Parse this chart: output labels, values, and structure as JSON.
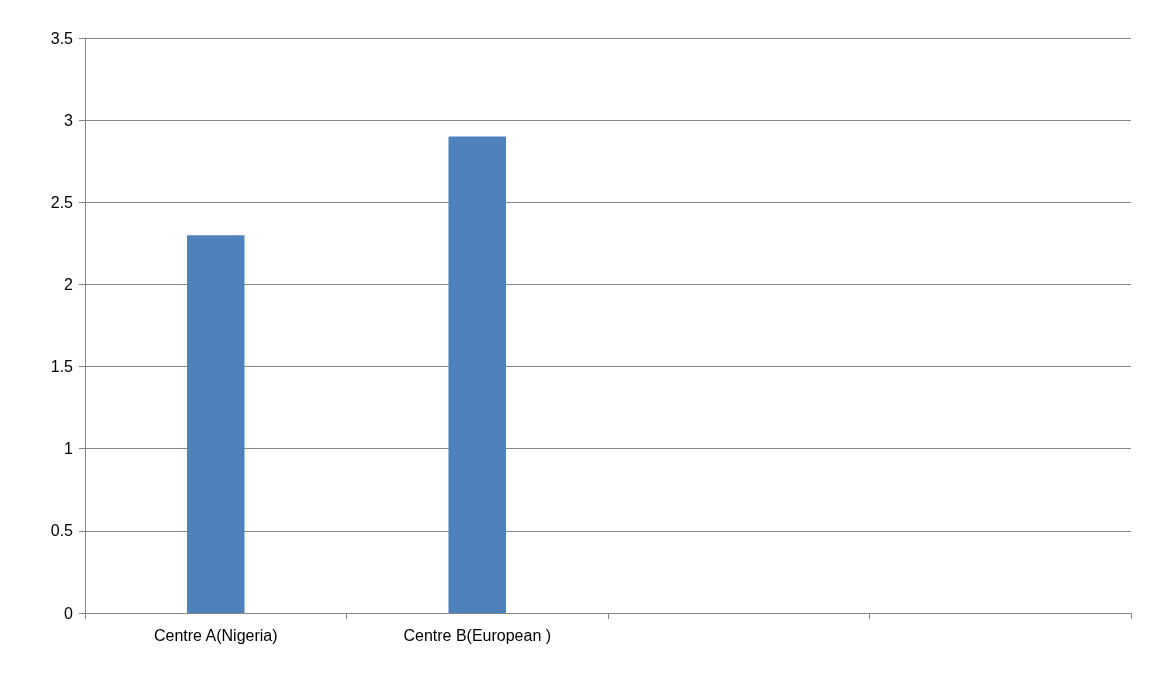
{
  "chart_data": {
    "type": "bar",
    "categories": [
      "Centre A(Nigeria)",
      "Centre B(European )",
      null,
      null
    ],
    "values": [
      2.3,
      2.9,
      null,
      null
    ],
    "color": "#4f81bd",
    "ylim": [
      0,
      3.5
    ],
    "yticks": [
      0,
      0.5,
      1,
      1.5,
      2,
      2.5,
      3,
      3.5
    ],
    "grid": "y"
  }
}
